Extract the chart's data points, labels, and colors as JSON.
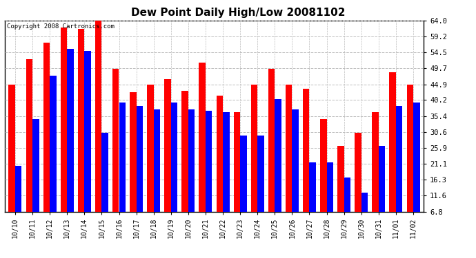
{
  "title": "Dew Point Daily High/Low 20081102",
  "copyright": "Copyright 2008 Cartronics.com",
  "categories": [
    "10/10",
    "10/11",
    "10/12",
    "10/13",
    "10/14",
    "10/15",
    "10/16",
    "10/17",
    "10/18",
    "10/19",
    "10/20",
    "10/21",
    "10/22",
    "10/23",
    "10/24",
    "10/25",
    "10/26",
    "10/27",
    "10/28",
    "10/29",
    "10/30",
    "10/31",
    "11/01",
    "11/02"
  ],
  "highs": [
    44.9,
    52.5,
    57.5,
    62.0,
    61.5,
    64.0,
    49.5,
    42.5,
    44.9,
    46.5,
    43.0,
    51.5,
    41.5,
    36.5,
    44.9,
    49.5,
    44.9,
    43.5,
    34.5,
    26.5,
    30.5,
    36.5,
    48.5,
    44.9
  ],
  "lows": [
    20.5,
    34.5,
    47.5,
    55.5,
    55.0,
    30.5,
    39.5,
    38.5,
    37.5,
    39.5,
    37.5,
    37.0,
    36.5,
    29.5,
    29.5,
    40.5,
    37.5,
    21.5,
    21.5,
    17.0,
    12.5,
    26.5,
    38.5,
    39.5
  ],
  "high_color": "#ff0000",
  "low_color": "#0000ff",
  "bg_color": "#ffffff",
  "grid_color": "#bbbbbb",
  "yticks": [
    6.8,
    11.6,
    16.3,
    21.1,
    25.9,
    30.6,
    35.4,
    40.2,
    44.9,
    49.7,
    54.5,
    59.2,
    64.0
  ],
  "ymin": 6.8,
  "ymax": 64.0,
  "bar_width": 0.38
}
